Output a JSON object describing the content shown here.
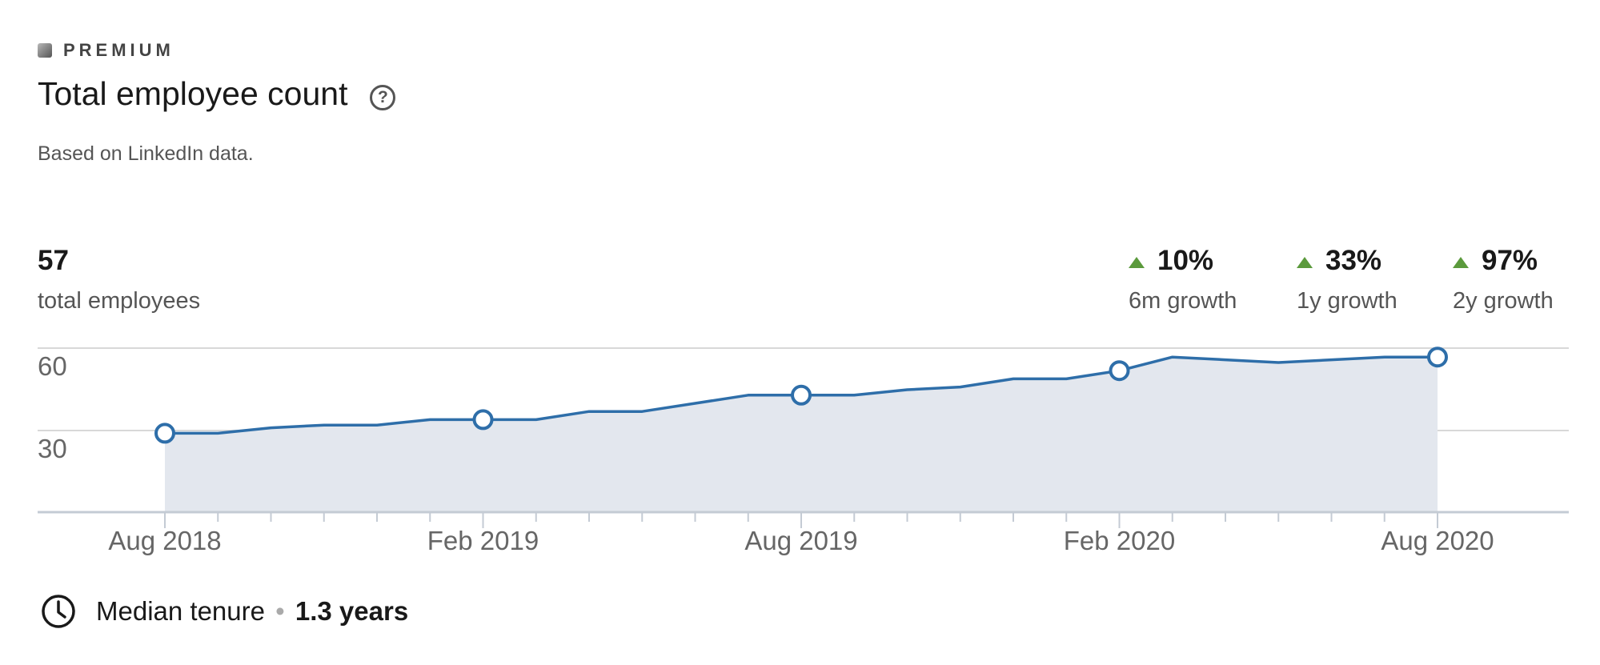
{
  "header": {
    "badge": "PREMIUM",
    "title": "Total employee count",
    "subtitle": "Based on LinkedIn data."
  },
  "summary": {
    "total_value": "57",
    "total_label": "total employees"
  },
  "growth": [
    {
      "value": "10%",
      "label": "6m growth"
    },
    {
      "value": "33%",
      "label": "1y growth"
    },
    {
      "value": "97%",
      "label": "2y growth"
    }
  ],
  "footer": {
    "tenure_label": "Median tenure",
    "tenure_value": "1.3 years"
  },
  "colors": {
    "line": "#2e6ea9",
    "area": "#e3e7ee",
    "growth_up": "#5b9a3c",
    "grid": "#d8d8d8",
    "axis": "#c4cbd4"
  },
  "chart_data": {
    "type": "area",
    "x": [
      "Aug 2018",
      "Sep 2018",
      "Oct 2018",
      "Nov 2018",
      "Dec 2018",
      "Jan 2019",
      "Feb 2019",
      "Mar 2019",
      "Apr 2019",
      "May 2019",
      "Jun 2019",
      "Jul 2019",
      "Aug 2019",
      "Sep 2019",
      "Oct 2019",
      "Nov 2019",
      "Dec 2019",
      "Jan 2020",
      "Feb 2020",
      "Mar 2020",
      "Apr 2020",
      "May 2020",
      "Jun 2020",
      "Jul 2020",
      "Aug 2020"
    ],
    "series": [
      {
        "values": [
          29,
          29,
          31,
          32,
          32,
          34,
          34,
          34,
          37,
          37,
          40,
          43,
          43,
          43,
          45,
          46,
          49,
          49,
          52,
          57,
          56,
          55,
          56,
          57,
          57
        ]
      }
    ],
    "marked_points": [
      "Aug 2018",
      "Feb 2019",
      "Aug 2019",
      "Feb 2020",
      "Aug 2020"
    ],
    "x_tick_labels": [
      "Aug 2018",
      "Feb 2019",
      "Aug 2019",
      "Feb 2020",
      "Aug 2020"
    ],
    "y_ticks": [
      30,
      60
    ],
    "ylim": [
      0,
      60
    ],
    "grid": true,
    "legend": "none"
  }
}
